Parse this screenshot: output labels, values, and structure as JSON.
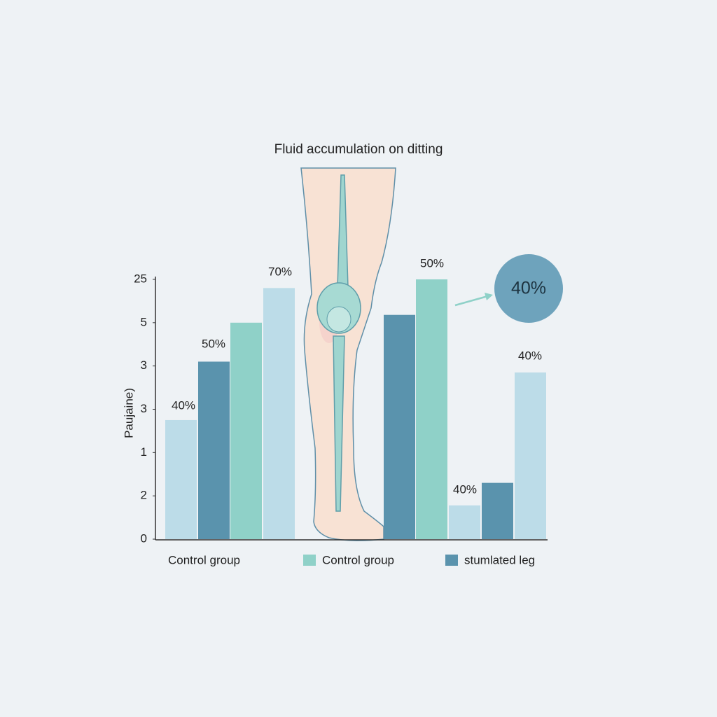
{
  "chart_data": {
    "type": "bar",
    "title": "Fluid accumulation on ditting",
    "y_label": "Paujaine)",
    "values": [
      2.75,
      4.1,
      5.0,
      5.8,
      5.18,
      6.0,
      0.78,
      1.3,
      3.85
    ],
    "colors": [
      "#bcdce8",
      "#5a93ad",
      "#8fd1c8",
      "#bcdce8",
      "#5a93ad",
      "#8fd1c8",
      "#bcdce8",
      "#5a93ad",
      "#bcdce8"
    ],
    "ylim": [
      0,
      6
    ],
    "yticks": [
      {
        "value": 6,
        "label": "25"
      },
      {
        "value": 5,
        "label": "5"
      },
      {
        "value": 4,
        "label": "3"
      },
      {
        "value": 3,
        "label": "3"
      },
      {
        "value": 2,
        "label": "1"
      },
      {
        "value": 1,
        "label": "2"
      },
      0
    ],
    "annotations": [
      "40%",
      "50%",
      "70%",
      "50%",
      "40%",
      "40%",
      "40%"
    ],
    "legend": [
      {
        "label": "Control group"
      },
      {
        "label": "Control group",
        "color": "#8fd1c8"
      },
      {
        "label": "stumlated leg",
        "color": "#5a93ad"
      }
    ]
  }
}
